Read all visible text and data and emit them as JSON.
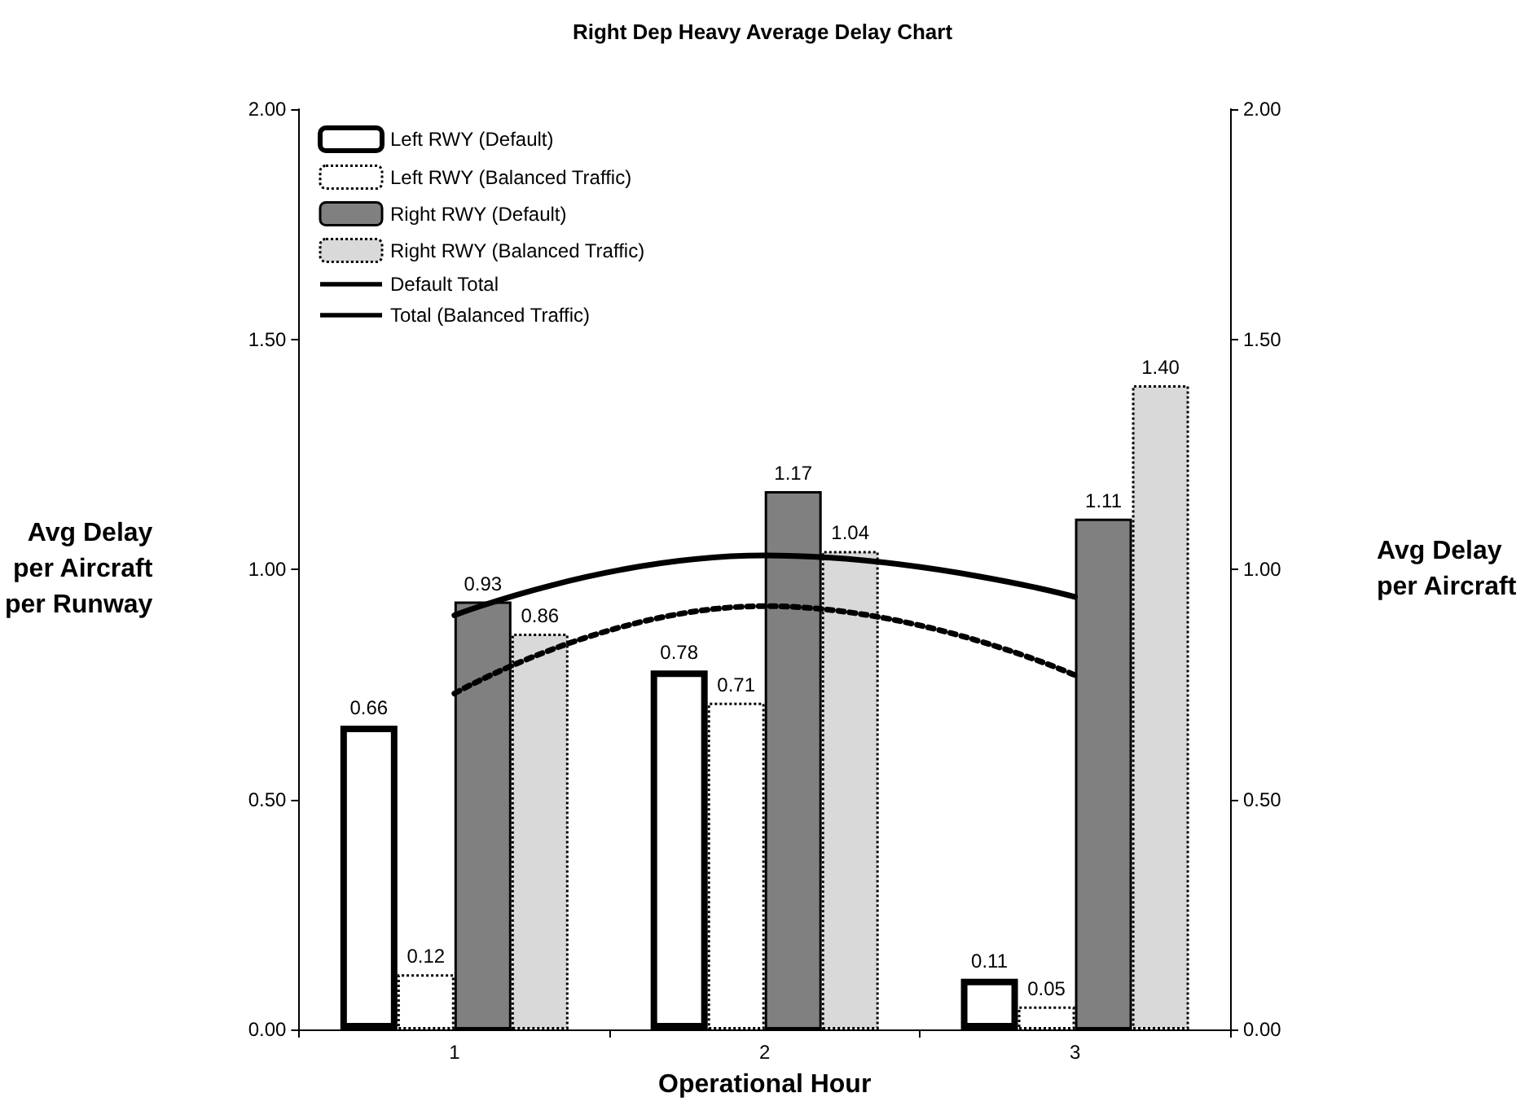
{
  "chart_data": {
    "type": "bar",
    "title": "Right Dep Heavy Average Delay Chart",
    "xlabel": "Operational Hour",
    "ylabel": "Avg Delay\nper Aircraft\nper Runway",
    "y2label": "Avg Delay\nper Aircraft",
    "categories": [
      "1",
      "2",
      "3"
    ],
    "series": [
      {
        "name": "Left RWY (Default)",
        "color": "#ffffff",
        "line_style": "solid",
        "values": [
          0.66,
          0.78,
          0.11
        ],
        "value_labels": [
          "0.66",
          "0.78",
          "0.11"
        ]
      },
      {
        "name": "Left RWY (Balanced Traffic)",
        "color": "#ffffff",
        "line_style": "dotted",
        "values": [
          0.12,
          0.71,
          0.05
        ],
        "value_labels": [
          "0.12",
          "0.71",
          "0.05"
        ]
      },
      {
        "name": "Right RWY (Default)",
        "color": "#808080",
        "line_style": "solid",
        "values": [
          0.93,
          1.17,
          1.11
        ],
        "value_labels": [
          "0.93",
          "1.17",
          "1.11"
        ]
      },
      {
        "name": "Right RWY (Balanced Traffic)",
        "color": "#d9d9d9",
        "line_style": "dotted",
        "values": [
          0.86,
          1.04,
          1.4
        ],
        "value_labels": [
          "0.86",
          "1.04",
          "1.40"
        ]
      },
      {
        "name": "Default Total",
        "type": "line",
        "color": "#000000",
        "line_style": "solid",
        "values": [
          0.9,
          1.03,
          0.94
        ]
      },
      {
        "name": "Total (Balanced Traffic)",
        "type": "line",
        "color": "#000000",
        "line_style": "dotted",
        "values": [
          0.73,
          0.92,
          0.77
        ]
      }
    ],
    "ylim": [
      0,
      2
    ],
    "yticks": [
      {
        "value": 0,
        "label": "0.00"
      },
      {
        "value": 0.5,
        "label": "0.50"
      },
      {
        "value": 1,
        "label": "1.00"
      },
      {
        "value": 1.5,
        "label": "1.50"
      },
      {
        "value": 2,
        "label": "2.00"
      }
    ],
    "y2lim": [
      0,
      2
    ],
    "y2ticks": [
      {
        "value": 0,
        "label": "0.00"
      },
      {
        "value": 0.5,
        "label": "0.50"
      },
      {
        "value": 1,
        "label": "1.00"
      },
      {
        "value": 1.5,
        "label": "1.50"
      },
      {
        "value": 2,
        "label": "2.00"
      }
    ],
    "legend": "top left",
    "grid": false,
    "marker": "none"
  }
}
